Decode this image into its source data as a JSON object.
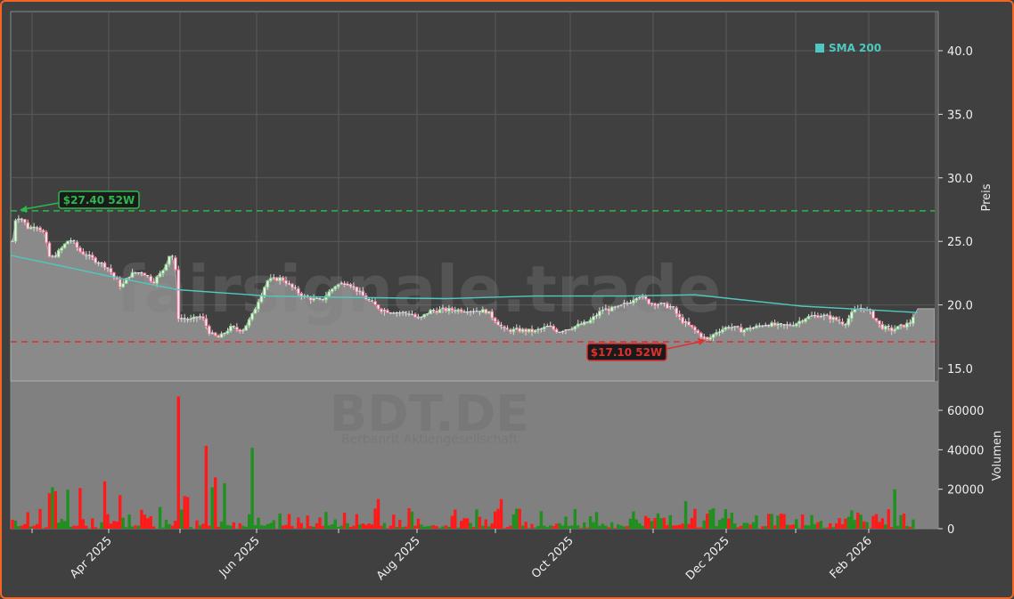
{
  "chart_data": {
    "type": "candlestick",
    "ticker_watermark": "BDT.DE",
    "company_watermark": "Berbanrit Aktiengesellschaft",
    "site_watermark": "fairsignale.trade",
    "legend": [
      {
        "label": "SMA 200",
        "color": "#4fc9c0"
      }
    ],
    "price_axis": {
      "label": "Preis",
      "ticks": [
        "15.0",
        "20.0",
        "25.0",
        "30.0",
        "35.0",
        "40.0"
      ],
      "range": [
        13.9,
        43.2
      ]
    },
    "volume_axis": {
      "label": "Volumen",
      "ticks": [
        "0",
        "20000",
        "40000",
        "60000"
      ],
      "range": [
        0,
        75000
      ]
    },
    "x_axis": {
      "ticks": [
        "Apr 2025",
        "Jun 2025",
        "Aug 2025",
        "Oct 2025",
        "Dec 2025",
        "Feb 2026"
      ]
    },
    "annotations": [
      {
        "label": "$27.40 52W",
        "value": 27.4,
        "type": "52w-high",
        "color": "#2db84d"
      },
      {
        "label": "$17.10 52W",
        "value": 17.1,
        "type": "52w-low",
        "color": "#e03030"
      }
    ],
    "price_series_approx": [
      {
        "date": "2025-03",
        "close": 26.0
      },
      {
        "date": "2025-03-mid",
        "close": 24.2
      },
      {
        "date": "2025-04",
        "close": 23.2
      },
      {
        "date": "2025-04-end",
        "close": 23.5
      },
      {
        "date": "2025-05",
        "close": 19.0
      },
      {
        "date": "2025-05-mid",
        "close": 17.6
      },
      {
        "date": "2025-06",
        "close": 20.2
      },
      {
        "date": "2025-06-mid",
        "close": 22.0
      },
      {
        "date": "2025-07",
        "close": 20.5
      },
      {
        "date": "2025-07-mid",
        "close": 21.5
      },
      {
        "date": "2025-08",
        "close": 19.5
      },
      {
        "date": "2025-09",
        "close": 19.4
      },
      {
        "date": "2025-09-mid",
        "close": 18.0
      },
      {
        "date": "2025-10",
        "close": 18.0
      },
      {
        "date": "2025-10-mid",
        "close": 19.6
      },
      {
        "date": "2025-11",
        "close": 20.3
      },
      {
        "date": "2025-11-mid",
        "close": 18.5
      },
      {
        "date": "2025-11-end",
        "close": 17.2
      },
      {
        "date": "2025-12",
        "close": 18.2
      },
      {
        "date": "2026-01",
        "close": 19.2
      },
      {
        "date": "2026-01-mid",
        "close": 19.8
      },
      {
        "date": "2026-02",
        "close": 18.0
      },
      {
        "date": "2026-02-end",
        "close": 19.7
      }
    ],
    "sma200_approx": [
      {
        "date": "2025-03",
        "value": 23.9
      },
      {
        "date": "2025-04",
        "value": 22.5
      },
      {
        "date": "2025-05",
        "value": 21.2
      },
      {
        "date": "2025-06",
        "value": 20.7
      },
      {
        "date": "2025-08",
        "value": 20.6
      },
      {
        "date": "2025-10",
        "value": 20.8
      },
      {
        "date": "2025-11",
        "value": 21.0
      },
      {
        "date": "2025-12",
        "value": 20.3
      },
      {
        "date": "2026-01",
        "value": 19.8
      },
      {
        "date": "2026-02",
        "value": 19.4
      }
    ],
    "volume_peaks": [
      {
        "date": "2025-05-start",
        "value": 67000,
        "color": "red"
      },
      {
        "date": "2025-05-mid",
        "value": 42000,
        "color": "red"
      },
      {
        "date": "2025-06-start",
        "value": 41000,
        "color": "green"
      },
      {
        "date": "2025-03-mid",
        "value": 21000,
        "color": "red"
      },
      {
        "date": "2025-04",
        "value": 24000,
        "color": "red"
      },
      {
        "date": "2026-02",
        "value": 20000,
        "color": "red"
      }
    ]
  }
}
